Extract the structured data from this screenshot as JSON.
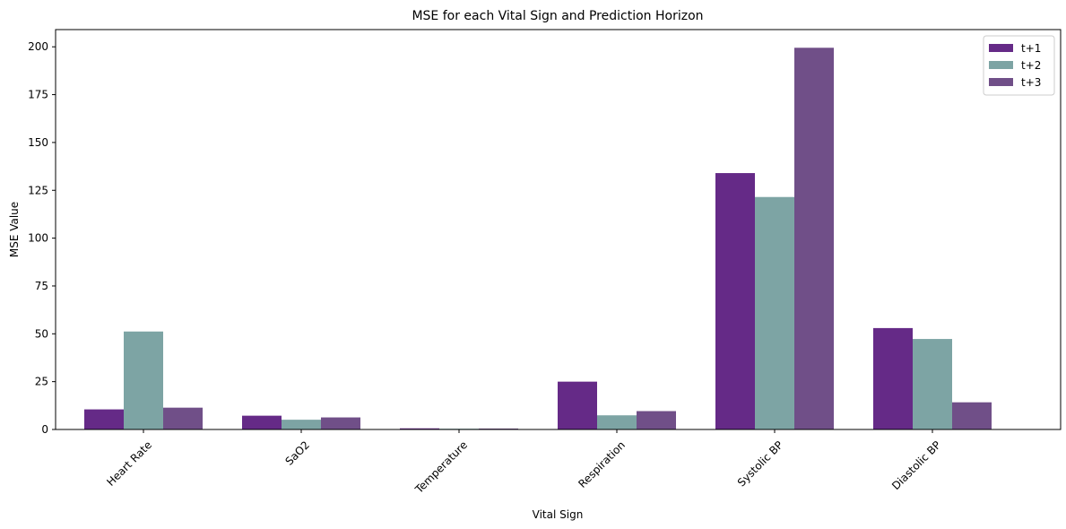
{
  "chart_data": {
    "type": "bar",
    "title": "MSE for each Vital Sign and Prediction Horizon",
    "xlabel": "Vital Sign",
    "ylabel": "MSE Value",
    "categories": [
      "Heart Rate",
      "SaO2",
      "Temperature",
      "Respiration",
      "Systolic BP",
      "Diastolic BP"
    ],
    "series": [
      {
        "name": "t+1",
        "color": "#652a87",
        "values": [
          10.5,
          7.2,
          0.6,
          25.0,
          134.0,
          53.0
        ]
      },
      {
        "name": "t+2",
        "color": "#7da4a4",
        "values": [
          51.2,
          5.1,
          0.4,
          7.4,
          121.5,
          47.3
        ]
      },
      {
        "name": "t+3",
        "color": "#704f88",
        "values": [
          11.4,
          6.3,
          0.5,
          9.6,
          199.5,
          14.2
        ]
      }
    ],
    "ylim": [
      0,
      209
    ],
    "yticks": [
      0,
      25,
      50,
      75,
      100,
      125,
      150,
      175,
      200
    ],
    "grid": false,
    "legend_position": "top-right"
  }
}
